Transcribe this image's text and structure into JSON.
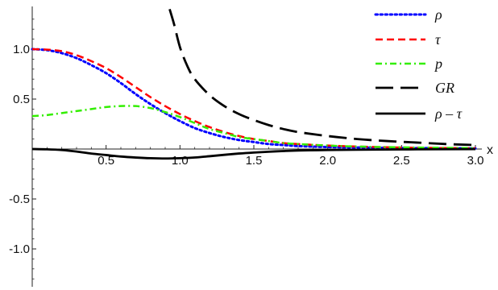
{
  "chart_data": {
    "type": "line",
    "title": "",
    "xlabel": "x",
    "ylabel": "",
    "xlim": [
      0,
      3.0
    ],
    "ylim": [
      -1.38,
      1.38
    ],
    "x_ticks": [
      "0.5",
      "1.0",
      "1.5",
      "2.0",
      "2.5",
      "3.0"
    ],
    "y_ticks": [
      "1.0",
      "0.5",
      "-0.5",
      "-1.0"
    ],
    "grid": false,
    "legend_position": "top-right",
    "series": [
      {
        "name": "ρ",
        "color": "#0000ff",
        "style": "dotted",
        "points": [
          [
            0.0,
            1.0
          ],
          [
            0.1,
            0.99
          ],
          [
            0.2,
            0.96
          ],
          [
            0.3,
            0.91
          ],
          [
            0.4,
            0.84
          ],
          [
            0.5,
            0.76
          ],
          [
            0.6,
            0.66
          ],
          [
            0.7,
            0.55
          ],
          [
            0.8,
            0.45
          ],
          [
            0.9,
            0.36
          ],
          [
            1.0,
            0.28
          ],
          [
            1.1,
            0.21
          ],
          [
            1.2,
            0.16
          ],
          [
            1.3,
            0.12
          ],
          [
            1.4,
            0.09
          ],
          [
            1.5,
            0.07
          ],
          [
            1.6,
            0.05
          ],
          [
            1.7,
            0.04
          ],
          [
            1.8,
            0.03
          ],
          [
            2.0,
            0.02
          ],
          [
            2.2,
            0.015
          ],
          [
            2.5,
            0.01
          ],
          [
            2.8,
            0.008
          ],
          [
            3.0,
            0.006
          ]
        ]
      },
      {
        "name": "τ",
        "color": "#ff0000",
        "style": "dashed",
        "points": [
          [
            0.0,
            1.0
          ],
          [
            0.1,
            0.995
          ],
          [
            0.2,
            0.98
          ],
          [
            0.3,
            0.94
          ],
          [
            0.4,
            0.88
          ],
          [
            0.5,
            0.81
          ],
          [
            0.6,
            0.72
          ],
          [
            0.7,
            0.62
          ],
          [
            0.8,
            0.52
          ],
          [
            0.9,
            0.43
          ],
          [
            1.0,
            0.35
          ],
          [
            1.1,
            0.28
          ],
          [
            1.2,
            0.22
          ],
          [
            1.3,
            0.17
          ],
          [
            1.4,
            0.13
          ],
          [
            1.5,
            0.1
          ],
          [
            1.6,
            0.08
          ],
          [
            1.7,
            0.06
          ],
          [
            1.8,
            0.05
          ],
          [
            2.0,
            0.035
          ],
          [
            2.2,
            0.025
          ],
          [
            2.5,
            0.015
          ],
          [
            2.8,
            0.01
          ],
          [
            3.0,
            0.008
          ]
        ]
      },
      {
        "name": "p",
        "color": "#33ee00",
        "style": "dashdot",
        "points": [
          [
            0.0,
            0.33
          ],
          [
            0.1,
            0.34
          ],
          [
            0.2,
            0.36
          ],
          [
            0.3,
            0.38
          ],
          [
            0.4,
            0.4
          ],
          [
            0.5,
            0.42
          ],
          [
            0.6,
            0.43
          ],
          [
            0.7,
            0.43
          ],
          [
            0.8,
            0.41
          ],
          [
            0.9,
            0.37
          ],
          [
            1.0,
            0.32
          ],
          [
            1.1,
            0.26
          ],
          [
            1.2,
            0.2
          ],
          [
            1.3,
            0.16
          ],
          [
            1.4,
            0.12
          ],
          [
            1.5,
            0.1
          ],
          [
            1.6,
            0.08
          ],
          [
            1.7,
            0.06
          ],
          [
            1.8,
            0.05
          ],
          [
            2.0,
            0.035
          ],
          [
            2.2,
            0.025
          ],
          [
            2.5,
            0.017
          ],
          [
            2.8,
            0.012
          ],
          [
            3.0,
            0.01
          ]
        ]
      },
      {
        "name": "GR",
        "color": "#000000",
        "style": "longdash",
        "points": [
          [
            0.93,
            1.4
          ],
          [
            0.96,
            1.25
          ],
          [
            1.0,
            1.02
          ],
          [
            1.05,
            0.83
          ],
          [
            1.1,
            0.7
          ],
          [
            1.2,
            0.54
          ],
          [
            1.3,
            0.43
          ],
          [
            1.4,
            0.35
          ],
          [
            1.5,
            0.29
          ],
          [
            1.6,
            0.24
          ],
          [
            1.7,
            0.2
          ],
          [
            1.8,
            0.17
          ],
          [
            2.0,
            0.13
          ],
          [
            2.2,
            0.1
          ],
          [
            2.4,
            0.08
          ],
          [
            2.6,
            0.065
          ],
          [
            2.8,
            0.05
          ],
          [
            3.0,
            0.04
          ]
        ]
      },
      {
        "name": "ρ – τ",
        "color": "#000000",
        "style": "solid",
        "points": [
          [
            0.0,
            0.0
          ],
          [
            0.1,
            -0.003
          ],
          [
            0.2,
            -0.01
          ],
          [
            0.3,
            -0.025
          ],
          [
            0.4,
            -0.045
          ],
          [
            0.5,
            -0.06
          ],
          [
            0.6,
            -0.075
          ],
          [
            0.7,
            -0.085
          ],
          [
            0.8,
            -0.092
          ],
          [
            0.9,
            -0.095
          ],
          [
            1.0,
            -0.092
          ],
          [
            1.1,
            -0.085
          ],
          [
            1.2,
            -0.072
          ],
          [
            1.3,
            -0.058
          ],
          [
            1.4,
            -0.045
          ],
          [
            1.5,
            -0.035
          ],
          [
            1.6,
            -0.027
          ],
          [
            1.7,
            -0.02
          ],
          [
            1.8,
            -0.015
          ],
          [
            2.0,
            -0.01
          ],
          [
            2.2,
            -0.007
          ],
          [
            2.5,
            -0.004
          ],
          [
            2.8,
            -0.002
          ],
          [
            3.0,
            -0.001
          ]
        ]
      }
    ]
  }
}
